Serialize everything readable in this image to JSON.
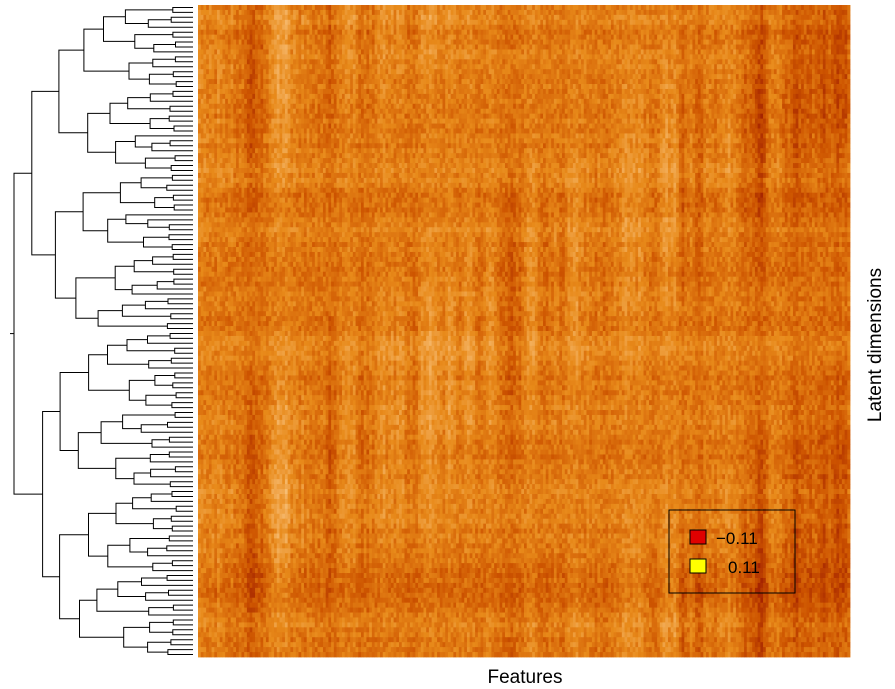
{
  "chart_data": {
    "type": "heatmap",
    "title": "",
    "xlabel": "Features",
    "ylabel": "Latent dimensions",
    "legend": {
      "placement": "bottom-right",
      "entries": [
        {
          "label": "−0.11",
          "value": -0.11,
          "color": "#e00000"
        },
        {
          "label": "0.11",
          "value": 0.11,
          "color": "#ffff00"
        }
      ]
    },
    "value_range": [
      -0.11,
      0.11
    ],
    "colormap": [
      "#a52400",
      "#cd5400",
      "#e88a1a",
      "#f4b261",
      "#fde2b0"
    ],
    "row_dendrogram": true,
    "n_rows": 132,
    "n_cols": 240
  }
}
